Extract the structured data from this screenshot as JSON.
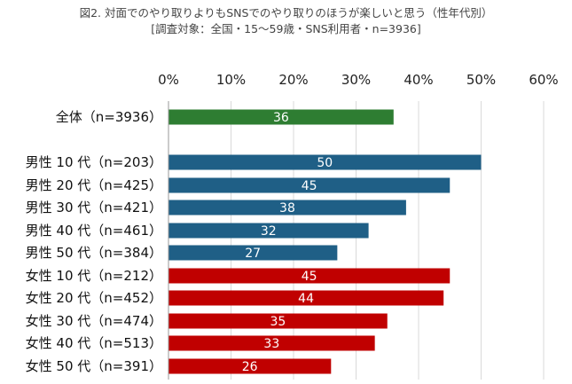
{
  "chart_data": {
    "type": "bar",
    "orientation": "horizontal",
    "title": "図2. 対面でのやり取りよりもSNSでのやり取りのほうが楽しいと思う（性年代別）",
    "subtitle": "[調査対象：全国・15～59歳・SNS利用者・n=3936]",
    "xlim": [
      0,
      60
    ],
    "xticks": [
      "0%",
      "10%",
      "20%",
      "30%",
      "40%",
      "50%",
      "60%"
    ],
    "grid": true,
    "categories": [
      "全体（n=3936）",
      "男性 10 代（n=203）",
      "男性 20 代（n=425）",
      "男性 30 代（n=421）",
      "男性 40 代（n=461）",
      "男性 50 代（n=384）",
      "女性 10 代（n=212）",
      "女性 20 代（n=452）",
      "女性 30 代（n=474）",
      "女性 40 代（n=513）",
      "女性 50 代（n=391）"
    ],
    "values": [
      36,
      50,
      45,
      38,
      32,
      27,
      45,
      44,
      35,
      33,
      26
    ],
    "value_labels": [
      "36",
      "50",
      "45",
      "38",
      "32",
      "27",
      "45",
      "44",
      "35",
      "33",
      "26"
    ],
    "colors": [
      "#2e7d32",
      "#1f5f86",
      "#1f5f86",
      "#1f5f86",
      "#1f5f86",
      "#1f5f86",
      "#c00000",
      "#c00000",
      "#c00000",
      "#c00000",
      "#c00000"
    ]
  }
}
